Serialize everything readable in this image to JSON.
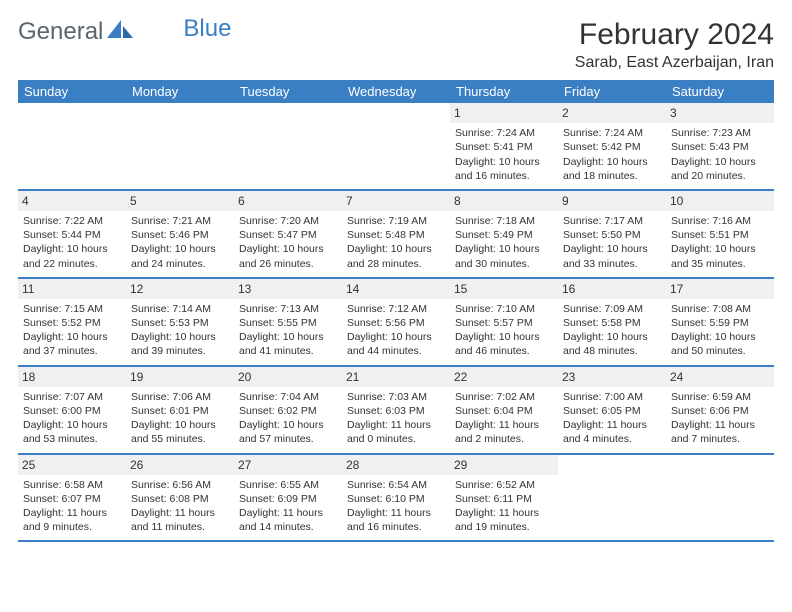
{
  "logo": {
    "text1": "General",
    "text2": "Blue"
  },
  "title": "February 2024",
  "location": "Sarab, East Azerbaijan, Iran",
  "colors": {
    "header_bg": "#3a7fc4",
    "header_text": "#ffffff",
    "daynum_bg": "#eef0f2",
    "rule": "#3a7fc4",
    "logo_gray": "#5a6570",
    "logo_blue": "#3a7fc4"
  },
  "day_headers": [
    "Sunday",
    "Monday",
    "Tuesday",
    "Wednesday",
    "Thursday",
    "Friday",
    "Saturday"
  ],
  "weeks": [
    [
      {
        "n": "",
        "empty": true
      },
      {
        "n": "",
        "empty": true
      },
      {
        "n": "",
        "empty": true
      },
      {
        "n": "",
        "empty": true
      },
      {
        "n": "1",
        "sunrise": "Sunrise: 7:24 AM",
        "sunset": "Sunset: 5:41 PM",
        "day1": "Daylight: 10 hours",
        "day2": "and 16 minutes."
      },
      {
        "n": "2",
        "sunrise": "Sunrise: 7:24 AM",
        "sunset": "Sunset: 5:42 PM",
        "day1": "Daylight: 10 hours",
        "day2": "and 18 minutes."
      },
      {
        "n": "3",
        "sunrise": "Sunrise: 7:23 AM",
        "sunset": "Sunset: 5:43 PM",
        "day1": "Daylight: 10 hours",
        "day2": "and 20 minutes."
      }
    ],
    [
      {
        "n": "4",
        "sunrise": "Sunrise: 7:22 AM",
        "sunset": "Sunset: 5:44 PM",
        "day1": "Daylight: 10 hours",
        "day2": "and 22 minutes."
      },
      {
        "n": "5",
        "sunrise": "Sunrise: 7:21 AM",
        "sunset": "Sunset: 5:46 PM",
        "day1": "Daylight: 10 hours",
        "day2": "and 24 minutes."
      },
      {
        "n": "6",
        "sunrise": "Sunrise: 7:20 AM",
        "sunset": "Sunset: 5:47 PM",
        "day1": "Daylight: 10 hours",
        "day2": "and 26 minutes."
      },
      {
        "n": "7",
        "sunrise": "Sunrise: 7:19 AM",
        "sunset": "Sunset: 5:48 PM",
        "day1": "Daylight: 10 hours",
        "day2": "and 28 minutes."
      },
      {
        "n": "8",
        "sunrise": "Sunrise: 7:18 AM",
        "sunset": "Sunset: 5:49 PM",
        "day1": "Daylight: 10 hours",
        "day2": "and 30 minutes."
      },
      {
        "n": "9",
        "sunrise": "Sunrise: 7:17 AM",
        "sunset": "Sunset: 5:50 PM",
        "day1": "Daylight: 10 hours",
        "day2": "and 33 minutes."
      },
      {
        "n": "10",
        "sunrise": "Sunrise: 7:16 AM",
        "sunset": "Sunset: 5:51 PM",
        "day1": "Daylight: 10 hours",
        "day2": "and 35 minutes."
      }
    ],
    [
      {
        "n": "11",
        "sunrise": "Sunrise: 7:15 AM",
        "sunset": "Sunset: 5:52 PM",
        "day1": "Daylight: 10 hours",
        "day2": "and 37 minutes."
      },
      {
        "n": "12",
        "sunrise": "Sunrise: 7:14 AM",
        "sunset": "Sunset: 5:53 PM",
        "day1": "Daylight: 10 hours",
        "day2": "and 39 minutes."
      },
      {
        "n": "13",
        "sunrise": "Sunrise: 7:13 AM",
        "sunset": "Sunset: 5:55 PM",
        "day1": "Daylight: 10 hours",
        "day2": "and 41 minutes."
      },
      {
        "n": "14",
        "sunrise": "Sunrise: 7:12 AM",
        "sunset": "Sunset: 5:56 PM",
        "day1": "Daylight: 10 hours",
        "day2": "and 44 minutes."
      },
      {
        "n": "15",
        "sunrise": "Sunrise: 7:10 AM",
        "sunset": "Sunset: 5:57 PM",
        "day1": "Daylight: 10 hours",
        "day2": "and 46 minutes."
      },
      {
        "n": "16",
        "sunrise": "Sunrise: 7:09 AM",
        "sunset": "Sunset: 5:58 PM",
        "day1": "Daylight: 10 hours",
        "day2": "and 48 minutes."
      },
      {
        "n": "17",
        "sunrise": "Sunrise: 7:08 AM",
        "sunset": "Sunset: 5:59 PM",
        "day1": "Daylight: 10 hours",
        "day2": "and 50 minutes."
      }
    ],
    [
      {
        "n": "18",
        "sunrise": "Sunrise: 7:07 AM",
        "sunset": "Sunset: 6:00 PM",
        "day1": "Daylight: 10 hours",
        "day2": "and 53 minutes."
      },
      {
        "n": "19",
        "sunrise": "Sunrise: 7:06 AM",
        "sunset": "Sunset: 6:01 PM",
        "day1": "Daylight: 10 hours",
        "day2": "and 55 minutes."
      },
      {
        "n": "20",
        "sunrise": "Sunrise: 7:04 AM",
        "sunset": "Sunset: 6:02 PM",
        "day1": "Daylight: 10 hours",
        "day2": "and 57 minutes."
      },
      {
        "n": "21",
        "sunrise": "Sunrise: 7:03 AM",
        "sunset": "Sunset: 6:03 PM",
        "day1": "Daylight: 11 hours",
        "day2": "and 0 minutes."
      },
      {
        "n": "22",
        "sunrise": "Sunrise: 7:02 AM",
        "sunset": "Sunset: 6:04 PM",
        "day1": "Daylight: 11 hours",
        "day2": "and 2 minutes."
      },
      {
        "n": "23",
        "sunrise": "Sunrise: 7:00 AM",
        "sunset": "Sunset: 6:05 PM",
        "day1": "Daylight: 11 hours",
        "day2": "and 4 minutes."
      },
      {
        "n": "24",
        "sunrise": "Sunrise: 6:59 AM",
        "sunset": "Sunset: 6:06 PM",
        "day1": "Daylight: 11 hours",
        "day2": "and 7 minutes."
      }
    ],
    [
      {
        "n": "25",
        "sunrise": "Sunrise: 6:58 AM",
        "sunset": "Sunset: 6:07 PM",
        "day1": "Daylight: 11 hours",
        "day2": "and 9 minutes."
      },
      {
        "n": "26",
        "sunrise": "Sunrise: 6:56 AM",
        "sunset": "Sunset: 6:08 PM",
        "day1": "Daylight: 11 hours",
        "day2": "and 11 minutes."
      },
      {
        "n": "27",
        "sunrise": "Sunrise: 6:55 AM",
        "sunset": "Sunset: 6:09 PM",
        "day1": "Daylight: 11 hours",
        "day2": "and 14 minutes."
      },
      {
        "n": "28",
        "sunrise": "Sunrise: 6:54 AM",
        "sunset": "Sunset: 6:10 PM",
        "day1": "Daylight: 11 hours",
        "day2": "and 16 minutes."
      },
      {
        "n": "29",
        "sunrise": "Sunrise: 6:52 AM",
        "sunset": "Sunset: 6:11 PM",
        "day1": "Daylight: 11 hours",
        "day2": "and 19 minutes."
      },
      {
        "n": "",
        "empty": true
      },
      {
        "n": "",
        "empty": true
      }
    ]
  ]
}
